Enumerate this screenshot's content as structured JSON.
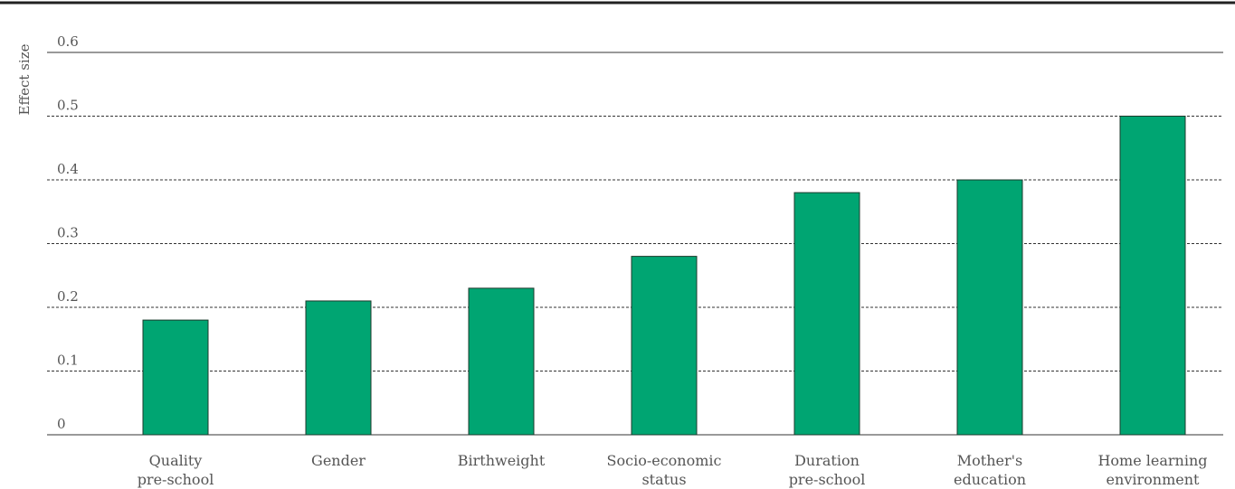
{
  "chart_data": {
    "type": "bar",
    "ylabel": "Effect size",
    "ylim": [
      0,
      0.6
    ],
    "yticks": [
      "0",
      "0.1",
      "0.2",
      "0.3",
      "0.4",
      "0.5",
      "0.6"
    ],
    "categories": [
      [
        "Quality",
        "pre-school"
      ],
      [
        "Gender"
      ],
      [
        "Birthweight"
      ],
      [
        "Socio-economic",
        "status"
      ],
      [
        "Duration",
        "pre-school"
      ],
      [
        "Mother's",
        "education"
      ],
      [
        "Home learning",
        "environment"
      ]
    ],
    "values": [
      0.18,
      0.21,
      0.23,
      0.28,
      0.38,
      0.4,
      0.5
    ],
    "grid": true,
    "colors": {
      "bar": "#00a572",
      "bar_stroke": "#1d3a2c",
      "grid": "#333333",
      "text": "#555555"
    }
  }
}
